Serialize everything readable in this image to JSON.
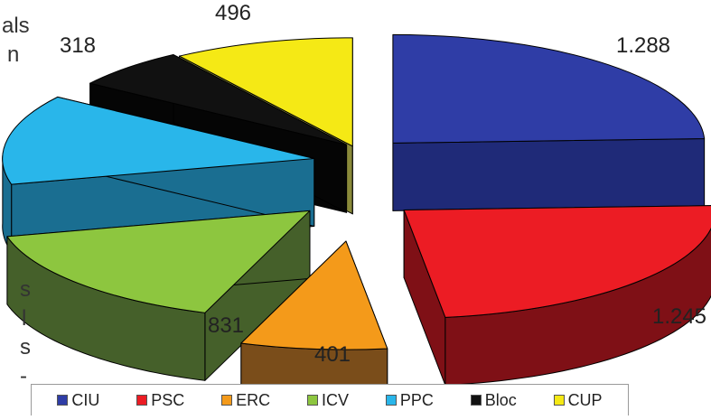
{
  "page_text": {
    "cut_off_fragments": [
      "als",
      "n",
      "s",
      "l",
      "s",
      "-"
    ]
  },
  "chart_data": {
    "type": "pie",
    "title": "",
    "categories": [
      "CIU",
      "PSC",
      "ERC",
      "ICV",
      "PPC",
      "Bloc",
      "CUP"
    ],
    "values": [
      1288,
      1245,
      401,
      831,
      711,
      318,
      496
    ],
    "value_labels": [
      "1.288",
      "1.245",
      "401",
      "831",
      "",
      "318",
      "496"
    ],
    "colors": [
      "#2f3da6",
      "#ec1c24",
      "#f49a1a",
      "#8dc63f",
      "#29b6ea",
      "#111111",
      "#f5e915"
    ],
    "side_colors": [
      "#1f2a78",
      "#7f1016",
      "#7a4d1a",
      "#45602a",
      "#1a6e91",
      "#050505",
      "#8a8a3a"
    ],
    "legend_placement": "bottom",
    "exploded": true,
    "three_d": true
  }
}
